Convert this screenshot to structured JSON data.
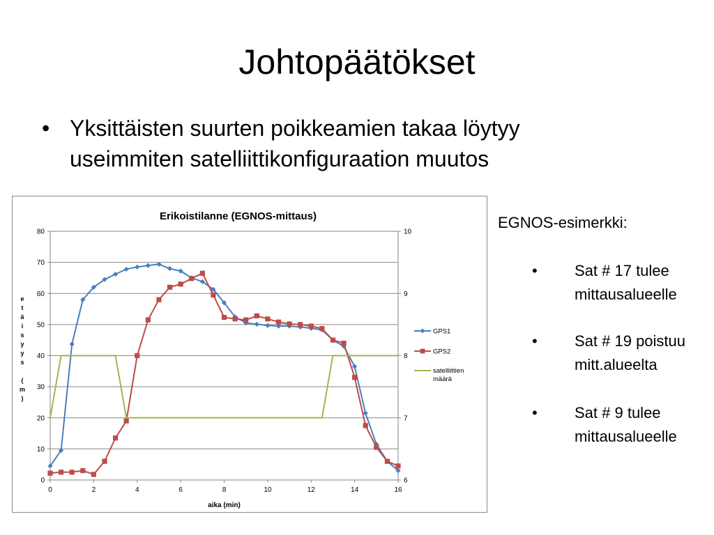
{
  "slide": {
    "title": "Johtopäätökset",
    "bullet": "Yksittäisten suurten poikkeamien takaa löytyy useimmiten satelliittikonfiguraation muutos",
    "bullet_symbol": "•",
    "side_heading": "EGNOS-esimerkki:",
    "side_items": [
      "Sat # 17 tulee mittausalueelle",
      "Sat # 19 poistuu mitt.alueelta",
      "Sat # 9 tulee mittausalueelle"
    ]
  },
  "chart_data": {
    "type": "line",
    "title": "Erikoistilanne (EGNOS-mittaus)",
    "xlabel": "aika (min)",
    "ylabel": "etäisyys (m)",
    "xlim": [
      0,
      16
    ],
    "ylim": [
      0,
      80
    ],
    "y2lim": [
      6,
      10
    ],
    "xticks": [
      "0",
      "2",
      "4",
      "6",
      "8",
      "10",
      "12",
      "14",
      "16"
    ],
    "yticks": [
      "0",
      "10",
      "20",
      "30",
      "40",
      "50",
      "60",
      "70",
      "80"
    ],
    "y2ticks": [
      "6",
      "7",
      "8",
      "9",
      "10"
    ],
    "grid": "horizontal",
    "legend_position": "right",
    "series": [
      {
        "name": "GPS1",
        "color": "#4a7ebb",
        "axis": "left",
        "marker": "diamond",
        "x": [
          0,
          0.5,
          1,
          1.5,
          2,
          2.5,
          3,
          3.5,
          4,
          4.5,
          5,
          5.5,
          6,
          6.5,
          7,
          7.5,
          8,
          8.5,
          9,
          9.5,
          10,
          10.5,
          11,
          11.5,
          12,
          12.5,
          13,
          13.5,
          14,
          14.5,
          15,
          15.5,
          16
        ],
        "y": [
          4.5,
          9.5,
          43.7,
          58,
          62,
          64.5,
          66.2,
          67.8,
          68.5,
          69,
          69.4,
          68,
          67.2,
          65,
          63.8,
          61.3,
          57,
          52.5,
          50.5,
          50.1,
          49.7,
          49.5,
          49.5,
          49.2,
          48.8,
          48.3,
          45,
          43,
          36.5,
          21.5,
          11.5,
          6,
          3
        ]
      },
      {
        "name": "GPS2",
        "color": "#be4b48",
        "axis": "left",
        "marker": "square",
        "x": [
          0,
          0.5,
          1,
          1.5,
          2,
          2.5,
          3,
          3.5,
          4,
          4.5,
          5,
          5.5,
          6,
          6.5,
          7,
          7.5,
          8,
          8.5,
          9,
          9.5,
          10,
          10.5,
          11,
          11.5,
          12,
          12.5,
          13,
          13.5,
          14,
          14.5,
          15,
          15.5,
          16
        ],
        "y": [
          2.2,
          2.5,
          2.5,
          3,
          1.8,
          6,
          13.5,
          19,
          40,
          51.5,
          58,
          62,
          63,
          64.8,
          66.5,
          59.5,
          52.3,
          51.8,
          51.5,
          52.8,
          51.8,
          50.8,
          50.2,
          50,
          49.5,
          48.7,
          45,
          44,
          33,
          17.5,
          10.5,
          6,
          4.5
        ]
      },
      {
        "name": "satelliittien määrä",
        "color": "#98b954",
        "axis": "right",
        "marker": "none",
        "x": [
          0,
          0.5,
          3,
          3.5,
          12.5,
          13,
          16
        ],
        "y": [
          7,
          8,
          8,
          7,
          7,
          8,
          8
        ]
      }
    ]
  }
}
